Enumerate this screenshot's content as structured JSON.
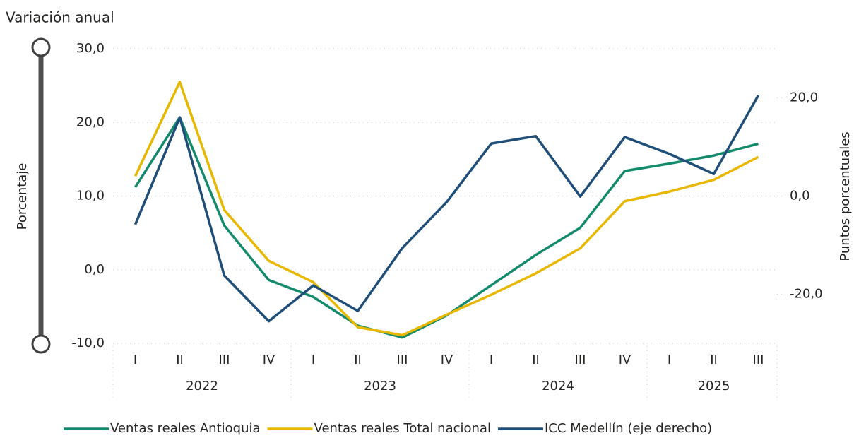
{
  "chart_data": {
    "type": "line",
    "title": "Variación anual",
    "y_label": "Porcentaje",
    "y2_label": "Puntos porcentuales",
    "groups": [
      {
        "label": "2022",
        "categories": [
          "I",
          "II",
          "III",
          "IV"
        ]
      },
      {
        "label": "2023",
        "categories": [
          "I",
          "II",
          "III",
          "IV"
        ]
      },
      {
        "label": "2024",
        "categories": [
          "I",
          "II",
          "III",
          "IV"
        ]
      },
      {
        "label": "2025",
        "categories": [
          "I",
          "II",
          "III"
        ]
      }
    ],
    "series": [
      {
        "name": "Ventas reales Antioquia",
        "color": "#138a6c",
        "values": [
          11.2,
          20.7,
          6.0,
          -1.4,
          -3.7,
          -7.6,
          -9.2,
          -6.2,
          -2.1,
          2.0,
          5.7,
          13.4,
          14.4,
          15.5,
          17.1
        ]
      },
      {
        "name": "Ventas reales Total nacional",
        "color": "#e8b800",
        "values": [
          12.7,
          25.5,
          8.1,
          1.2,
          -1.7,
          -7.8,
          -8.9,
          -6.1,
          -3.4,
          -0.5,
          2.9,
          9.3,
          10.6,
          12.2,
          15.3
        ]
      },
      {
        "name": "ICC Medellín (eje derecho)",
        "color": "#1f4e79",
        "axis": "y2",
        "values": [
          -5.8,
          16.0,
          -16.2,
          -25.5,
          -18.2,
          -23.4,
          -10.6,
          -1.2,
          10.7,
          12.2,
          -0.1,
          12.0,
          8.6,
          4.5,
          20.5
        ]
      }
    ],
    "ylim": [
      -10,
      30
    ],
    "yticks": [
      {
        "value": -10,
        "label": "-10,0"
      },
      {
        "value": 0,
        "label": "0,0"
      },
      {
        "value": 10,
        "label": "10,0"
      },
      {
        "value": 20,
        "label": "20,0"
      },
      {
        "value": 30,
        "label": "30,0"
      }
    ],
    "y2lim": [
      -30,
      30
    ],
    "y2ticks": [
      {
        "value": -20,
        "label": "-20,0"
      },
      {
        "value": 0,
        "label": "0,0"
      },
      {
        "value": 20,
        "label": "20,0"
      }
    ],
    "grid": true,
    "legend": "bottom"
  }
}
